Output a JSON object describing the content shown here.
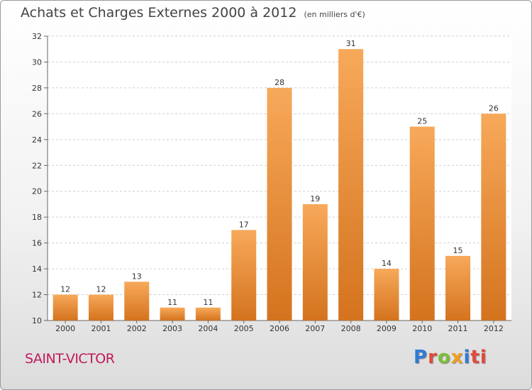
{
  "header": {
    "title": "Achats et Charges Externes 2000 à 2012",
    "unit": "(en milliers d'€)"
  },
  "commune": "SAINT-VICTOR",
  "logo": {
    "text": "Proxiti"
  },
  "colors": {
    "bar_light": "#f7a95a",
    "bar_dark": "#d4731e",
    "commune": "#c01a5c"
  },
  "chart_data": {
    "type": "bar",
    "title": "Achats et Charges Externes 2000 à 2012",
    "unit": "(en milliers d'€)",
    "categories": [
      "2000",
      "2001",
      "2002",
      "2003",
      "2004",
      "2005",
      "2006",
      "2007",
      "2008",
      "2009",
      "2010",
      "2011",
      "2012"
    ],
    "values": [
      12,
      12,
      13,
      11,
      11,
      17,
      28,
      19,
      31,
      14,
      25,
      15,
      26
    ],
    "ylim": [
      10,
      32
    ],
    "yticks": [
      10,
      12,
      14,
      16,
      18,
      20,
      22,
      24,
      26,
      28,
      30,
      32
    ],
    "grid": true,
    "legend": "none"
  }
}
